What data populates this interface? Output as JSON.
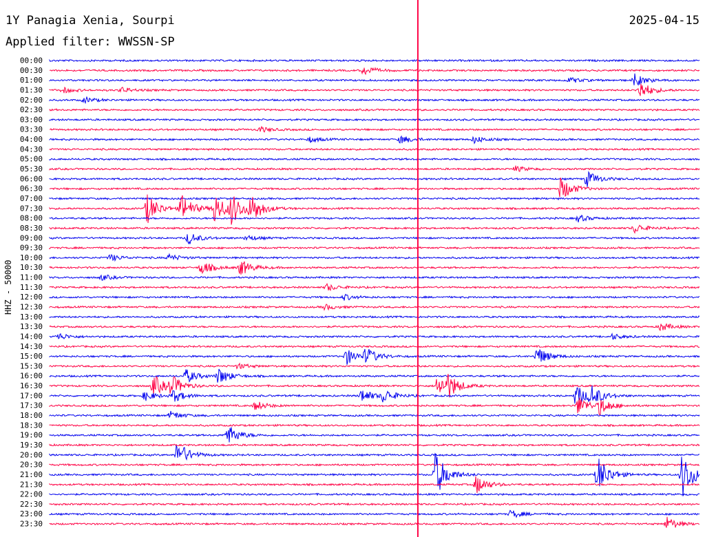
{
  "header": {
    "station": "1Y Panagia Xenia, Sourpi",
    "date": "2025-04-15",
    "filter": "Applied filter: WWSSN-SP",
    "channel": "HHZ - 50000"
  },
  "colors": {
    "even_row": "#0000ee",
    "odd_row": "#ff0044",
    "marker": "#ff0044"
  },
  "chart_data": {
    "type": "line",
    "title": "1Y Panagia Xenia, Sourpi",
    "ylabel": "HHZ - 50000",
    "row_minutes": 30,
    "x_range_minutes": [
      0,
      30
    ],
    "marker_time": "22:17",
    "rows": [
      "00:00",
      "00:30",
      "01:00",
      "01:30",
      "02:00",
      "02:30",
      "03:00",
      "03:30",
      "04:00",
      "04:30",
      "05:00",
      "05:30",
      "06:00",
      "06:30",
      "07:00",
      "07:30",
      "08:00",
      "08:30",
      "09:00",
      "09:30",
      "10:00",
      "10:30",
      "11:00",
      "11:30",
      "12:00",
      "12:30",
      "13:00",
      "13:30",
      "14:00",
      "14:30",
      "15:00",
      "15:30",
      "16:00",
      "16:30",
      "17:00",
      "17:30",
      "18:00",
      "18:30",
      "19:00",
      "19:30",
      "20:00",
      "20:30",
      "21:00",
      "21:30",
      "22:00",
      "22:30",
      "23:00",
      "23:30"
    ],
    "events": [
      {
        "row": 1,
        "minute": 14.5,
        "amp": 7
      },
      {
        "row": 2,
        "minute": 27.0,
        "amp": 9
      },
      {
        "row": 2,
        "minute": 24.0,
        "amp": 4
      },
      {
        "row": 3,
        "minute": 0.6,
        "amp": 4
      },
      {
        "row": 3,
        "minute": 3.3,
        "amp": 4
      },
      {
        "row": 3,
        "minute": 27.2,
        "amp": 15
      },
      {
        "row": 4,
        "minute": 1.6,
        "amp": 4
      },
      {
        "row": 7,
        "minute": 9.7,
        "amp": 4
      },
      {
        "row": 8,
        "minute": 12.0,
        "amp": 4
      },
      {
        "row": 8,
        "minute": 16.2,
        "amp": 6
      },
      {
        "row": 8,
        "minute": 19.6,
        "amp": 5
      },
      {
        "row": 11,
        "minute": 21.5,
        "amp": 4
      },
      {
        "row": 12,
        "minute": 24.8,
        "amp": 12
      },
      {
        "row": 13,
        "minute": 23.6,
        "amp": 18
      },
      {
        "row": 15,
        "minute": 4.5,
        "amp": 22
      },
      {
        "row": 15,
        "minute": 6.1,
        "amp": 20
      },
      {
        "row": 15,
        "minute": 7.6,
        "amp": 22
      },
      {
        "row": 15,
        "minute": 8.4,
        "amp": 20
      },
      {
        "row": 15,
        "minute": 9.3,
        "amp": 20
      },
      {
        "row": 16,
        "minute": 24.4,
        "amp": 5
      },
      {
        "row": 17,
        "minute": 27.0,
        "amp": 7
      },
      {
        "row": 18,
        "minute": 6.4,
        "amp": 9
      },
      {
        "row": 18,
        "minute": 9.1,
        "amp": 4
      },
      {
        "row": 20,
        "minute": 2.8,
        "amp": 5
      },
      {
        "row": 20,
        "minute": 5.5,
        "amp": 5
      },
      {
        "row": 21,
        "minute": 7.0,
        "amp": 10
      },
      {
        "row": 21,
        "minute": 8.8,
        "amp": 12
      },
      {
        "row": 22,
        "minute": 2.4,
        "amp": 4
      },
      {
        "row": 23,
        "minute": 12.8,
        "amp": 5
      },
      {
        "row": 24,
        "minute": 13.6,
        "amp": 4
      },
      {
        "row": 25,
        "minute": 12.7,
        "amp": 4
      },
      {
        "row": 27,
        "minute": 28.2,
        "amp": 6
      },
      {
        "row": 28,
        "minute": 0.4,
        "amp": 5
      },
      {
        "row": 28,
        "minute": 26.0,
        "amp": 4
      },
      {
        "row": 30,
        "minute": 13.7,
        "amp": 12
      },
      {
        "row": 30,
        "minute": 14.6,
        "amp": 12
      },
      {
        "row": 30,
        "minute": 22.5,
        "amp": 14
      },
      {
        "row": 31,
        "minute": 8.7,
        "amp": 4
      },
      {
        "row": 32,
        "minute": 6.3,
        "amp": 10
      },
      {
        "row": 32,
        "minute": 7.8,
        "amp": 12
      },
      {
        "row": 33,
        "minute": 4.8,
        "amp": 16
      },
      {
        "row": 33,
        "minute": 5.6,
        "amp": 14
      },
      {
        "row": 33,
        "minute": 17.9,
        "amp": 16
      },
      {
        "row": 33,
        "minute": 18.4,
        "amp": 14
      },
      {
        "row": 34,
        "minute": 4.4,
        "amp": 7
      },
      {
        "row": 34,
        "minute": 5.7,
        "amp": 9
      },
      {
        "row": 34,
        "minute": 14.4,
        "amp": 10
      },
      {
        "row": 34,
        "minute": 15.4,
        "amp": 10
      },
      {
        "row": 34,
        "minute": 24.3,
        "amp": 16
      },
      {
        "row": 34,
        "minute": 25.0,
        "amp": 14
      },
      {
        "row": 35,
        "minute": 9.5,
        "amp": 7
      },
      {
        "row": 35,
        "minute": 24.4,
        "amp": 14
      },
      {
        "row": 35,
        "minute": 25.4,
        "amp": 12
      },
      {
        "row": 36,
        "minute": 5.6,
        "amp": 6
      },
      {
        "row": 38,
        "minute": 8.2,
        "amp": 16
      },
      {
        "row": 40,
        "minute": 5.9,
        "amp": 20
      },
      {
        "row": 42,
        "minute": 17.8,
        "amp": 34
      },
      {
        "row": 42,
        "minute": 25.3,
        "amp": 28
      },
      {
        "row": 42,
        "minute": 29.2,
        "amp": 34
      },
      {
        "row": 43,
        "minute": 19.7,
        "amp": 14
      },
      {
        "row": 46,
        "minute": 21.3,
        "amp": 6
      },
      {
        "row": 47,
        "minute": 28.5,
        "amp": 10
      }
    ]
  }
}
